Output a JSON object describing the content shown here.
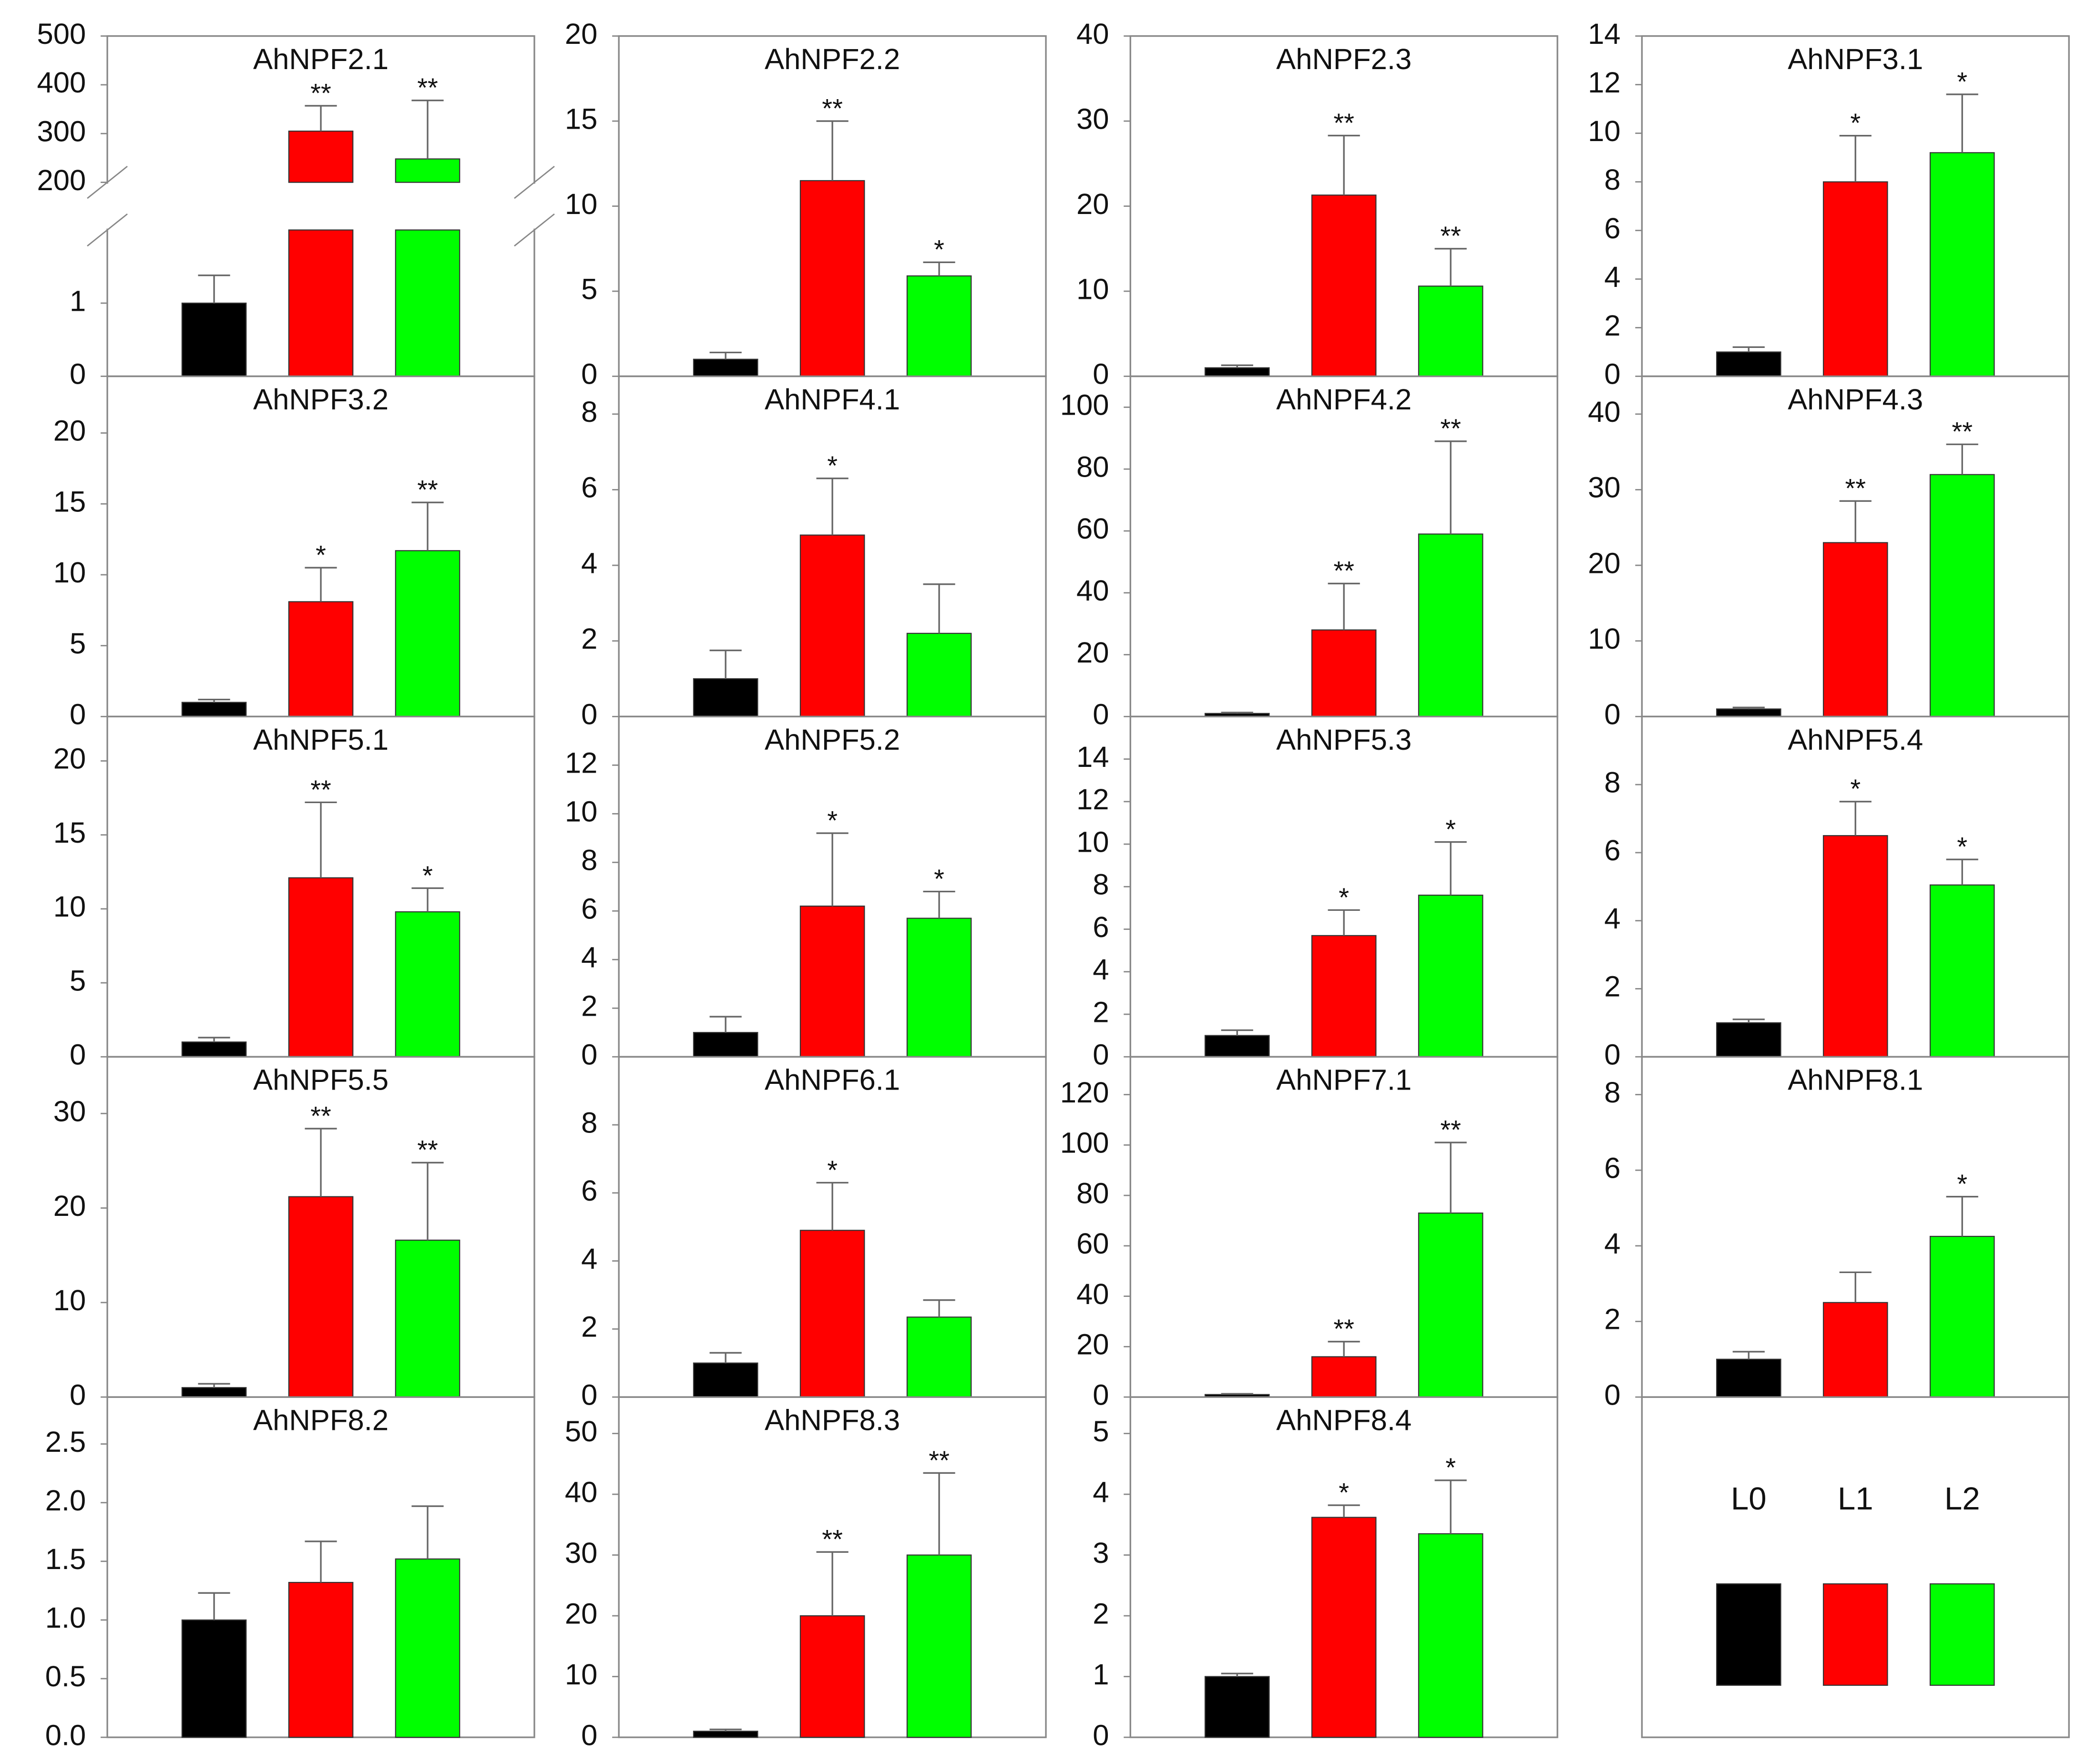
{
  "chart_data": [
    {
      "type": "bar",
      "title": "AhNPF2.1",
      "values": [
        1.0,
        305,
        248
      ],
      "errors": [
        0.38,
        52,
        120
      ],
      "annotations": [
        null,
        "**",
        "**"
      ],
      "broken_axis": {
        "lower": [
          0,
          2
        ],
        "upper": [
          200,
          500
        ]
      },
      "ylim": [
        0,
        500
      ],
      "yticks": [
        0,
        1,
        200,
        300,
        400,
        500
      ]
    },
    {
      "type": "bar",
      "title": "AhNPF2.2",
      "values": [
        1.0,
        11.5,
        5.9
      ],
      "errors": [
        0.4,
        3.5,
        0.8
      ],
      "annotations": [
        null,
        "**",
        "*"
      ],
      "ylim": [
        0,
        20
      ],
      "yticks": [
        0,
        5,
        10,
        15,
        20
      ]
    },
    {
      "type": "bar",
      "title": "AhNPF2.3",
      "values": [
        1.0,
        21.3,
        10.6
      ],
      "errors": [
        0.3,
        7,
        4.4
      ],
      "annotations": [
        null,
        "**",
        "**"
      ],
      "ylim": [
        0,
        40
      ],
      "yticks": [
        0,
        10,
        20,
        30,
        40
      ]
    },
    {
      "type": "bar",
      "title": "AhNPF3.1",
      "values": [
        1.0,
        8.0,
        9.2
      ],
      "errors": [
        0.2,
        1.9,
        2.4
      ],
      "annotations": [
        null,
        "*",
        "*"
      ],
      "ylim": [
        0,
        14
      ],
      "yticks": [
        0,
        2,
        4,
        6,
        8,
        10,
        12,
        14
      ]
    },
    {
      "type": "bar",
      "title": "AhNPF3.2",
      "values": [
        1.0,
        8.1,
        11.7
      ],
      "errors": [
        0.2,
        2.4,
        3.4
      ],
      "annotations": [
        null,
        "*",
        "**"
      ],
      "ylim": [
        0,
        24
      ],
      "yticks": [
        0,
        5,
        10,
        15,
        20
      ]
    },
    {
      "type": "bar",
      "title": "AhNPF4.1",
      "values": [
        1.0,
        4.8,
        2.2
      ],
      "errors": [
        0.75,
        1.5,
        1.3
      ],
      "annotations": [
        null,
        "*",
        null
      ],
      "ylim": [
        0,
        9
      ],
      "yticks": [
        0,
        2,
        4,
        6,
        8
      ]
    },
    {
      "type": "bar",
      "title": "AhNPF4.2",
      "values": [
        1,
        28,
        59
      ],
      "errors": [
        0.3,
        15,
        30
      ],
      "annotations": [
        null,
        "**",
        "**"
      ],
      "ylim": [
        0,
        110
      ],
      "yticks": [
        0,
        20,
        40,
        60,
        80,
        100
      ]
    },
    {
      "type": "bar",
      "title": "AhNPF4.3",
      "values": [
        1,
        23,
        32
      ],
      "errors": [
        0.2,
        5.5,
        4
      ],
      "annotations": [
        null,
        "**",
        "**"
      ],
      "ylim": [
        0,
        45
      ],
      "yticks": [
        0,
        10,
        20,
        30,
        40
      ]
    },
    {
      "type": "bar",
      "title": "AhNPF5.1",
      "values": [
        1.0,
        12.1,
        9.8
      ],
      "errors": [
        0.3,
        5.1,
        1.6
      ],
      "annotations": [
        null,
        "**",
        "*"
      ],
      "ylim": [
        0,
        23
      ],
      "yticks": [
        0,
        5,
        10,
        15,
        20
      ]
    },
    {
      "type": "bar",
      "title": "AhNPF5.2",
      "values": [
        1.0,
        6.2,
        5.7
      ],
      "errors": [
        0.65,
        3.0,
        1.1
      ],
      "annotations": [
        null,
        "*",
        "*"
      ],
      "ylim": [
        0,
        14
      ],
      "yticks": [
        0,
        2,
        4,
        6,
        8,
        10,
        12
      ]
    },
    {
      "type": "bar",
      "title": "AhNPF5.3",
      "values": [
        1.0,
        5.7,
        7.6
      ],
      "errors": [
        0.25,
        1.2,
        2.5
      ],
      "annotations": [
        null,
        "*",
        "*"
      ],
      "ylim": [
        0,
        16
      ],
      "yticks": [
        0,
        2,
        4,
        6,
        8,
        10,
        12,
        14
      ]
    },
    {
      "type": "bar",
      "title": "AhNPF5.4",
      "values": [
        1.0,
        6.5,
        5.05
      ],
      "errors": [
        0.1,
        1.0,
        0.75
      ],
      "annotations": [
        null,
        "*",
        "*"
      ],
      "ylim": [
        0,
        10
      ],
      "yticks": [
        0,
        2,
        4,
        6,
        8
      ]
    },
    {
      "type": "bar",
      "title": "AhNPF5.5",
      "values": [
        1.0,
        21.2,
        16.6
      ],
      "errors": [
        0.4,
        7.2,
        8.2
      ],
      "annotations": [
        null,
        "**",
        "**"
      ],
      "ylim": [
        0,
        36
      ],
      "yticks": [
        0,
        10,
        20,
        30
      ]
    },
    {
      "type": "bar",
      "title": "AhNPF6.1",
      "values": [
        1.0,
        4.9,
        2.35
      ],
      "errors": [
        0.3,
        1.4,
        0.5
      ],
      "annotations": [
        null,
        "*",
        null
      ],
      "ylim": [
        0,
        10
      ],
      "yticks": [
        0,
        2,
        4,
        6,
        8
      ]
    },
    {
      "type": "bar",
      "title": "AhNPF7.1",
      "values": [
        1,
        16,
        73
      ],
      "errors": [
        0.3,
        6,
        28
      ],
      "annotations": [
        null,
        "**",
        "**"
      ],
      "ylim": [
        0,
        135
      ],
      "yticks": [
        0,
        20,
        40,
        60,
        80,
        100,
        120
      ]
    },
    {
      "type": "bar",
      "title": "AhNPF8.1",
      "values": [
        1.0,
        2.5,
        4.25
      ],
      "errors": [
        0.2,
        0.8,
        1.05
      ],
      "annotations": [
        null,
        null,
        "*"
      ],
      "ylim": [
        0,
        9
      ],
      "yticks": [
        0,
        2,
        4,
        6,
        8
      ]
    },
    {
      "type": "bar",
      "title": "AhNPF8.2",
      "values": [
        1.0,
        1.32,
        1.52
      ],
      "errors": [
        0.23,
        0.35,
        0.45
      ],
      "annotations": [
        null,
        null,
        null
      ],
      "ylim": [
        0,
        2.9
      ],
      "yticks": [
        {
          "value": 0,
          "label": "0.0"
        },
        0.5,
        {
          "value": 1,
          "label": "1.0"
        },
        1.5,
        {
          "value": 2,
          "label": "2.0"
        },
        2.5
      ]
    },
    {
      "type": "bar",
      "title": "AhNPF8.3",
      "values": [
        1,
        20,
        30
      ],
      "errors": [
        0.3,
        10.5,
        13.5
      ],
      "annotations": [
        null,
        "**",
        "**"
      ],
      "ylim": [
        0,
        56
      ],
      "yticks": [
        0,
        10,
        20,
        30,
        40,
        50
      ]
    },
    {
      "type": "bar",
      "title": "AhNPF8.4",
      "values": [
        1.0,
        3.62,
        3.35
      ],
      "errors": [
        0.05,
        0.2,
        0.88
      ],
      "annotations": [
        null,
        "*",
        "*"
      ],
      "ylim": [
        0,
        5.6
      ],
      "yticks": [
        0,
        1,
        2,
        3,
        4,
        5
      ]
    }
  ],
  "legend": {
    "labels": [
      "L0",
      "L1",
      "L2"
    ],
    "colors": [
      "#000000",
      "#ff0000",
      "#00ff00"
    ]
  }
}
